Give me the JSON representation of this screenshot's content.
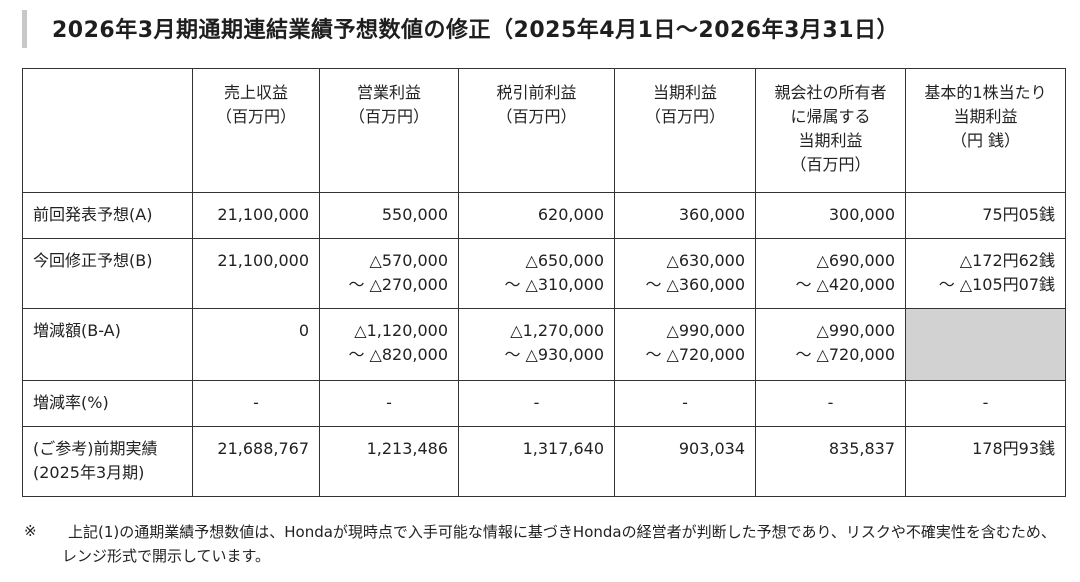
{
  "title": "2026年3月期通期連結業績予想数値の修正（2025年4月1日～2026年3月31日）",
  "header": {
    "columns": [
      [
        "売上収益",
        "（百万円）"
      ],
      [
        "営業利益",
        "（百万円）"
      ],
      [
        "税引前利益",
        "（百万円）"
      ],
      [
        "当期利益",
        "（百万円）"
      ],
      [
        "親会社の所有者",
        "に帰属する",
        "当期利益",
        "（百万円）"
      ],
      [
        "基本的1株当たり",
        "当期利益",
        "（円 銭）"
      ]
    ]
  },
  "rows": [
    {
      "label": [
        "前回発表予想(A)"
      ],
      "cells": [
        [
          "21,100,000"
        ],
        [
          "550,000"
        ],
        [
          "620,000"
        ],
        [
          "360,000"
        ],
        [
          "300,000"
        ],
        [
          "75円05銭"
        ]
      ]
    },
    {
      "label": [
        "今回修正予想(B)"
      ],
      "cells": [
        [
          "21,100,000"
        ],
        [
          "△570,000",
          "～ △270,000"
        ],
        [
          "△650,000",
          "～ △310,000"
        ],
        [
          "△630,000",
          "～ △360,000"
        ],
        [
          "△690,000",
          "～ △420,000"
        ],
        [
          "△172円62銭",
          "～ △105円07銭"
        ]
      ]
    },
    {
      "label": [
        "増減額(B-A)"
      ],
      "cells": [
        [
          "0"
        ],
        [
          "△1,120,000",
          "～ △820,000"
        ],
        [
          "△1,270,000",
          "～ △930,000"
        ],
        [
          "△990,000",
          "～ △720,000"
        ],
        [
          "△990,000",
          "～ △720,000"
        ],
        []
      ]
    },
    {
      "label": [
        "増減率(%)"
      ],
      "cells": [
        [
          "-"
        ],
        [
          "-"
        ],
        [
          "-"
        ],
        [
          "-"
        ],
        [
          "-"
        ],
        [
          "-"
        ]
      ]
    },
    {
      "label": [
        "(ご参考)前期実績",
        "(2025年3月期)"
      ],
      "cells": [
        [
          "21,688,767"
        ],
        [
          "1,213,486"
        ],
        [
          "1,317,640"
        ],
        [
          "903,034"
        ],
        [
          "835,837"
        ],
        [
          "178円93銭"
        ]
      ]
    }
  ],
  "note": {
    "mark": "※",
    "text": "上記(1)の通期業績予想数値は、Hondaが現時点で入手可能な情報に基づきHondaの経営者が判断した予想であり、リスクや不確実性を含むため、レンジ形式で開示しています。"
  }
}
